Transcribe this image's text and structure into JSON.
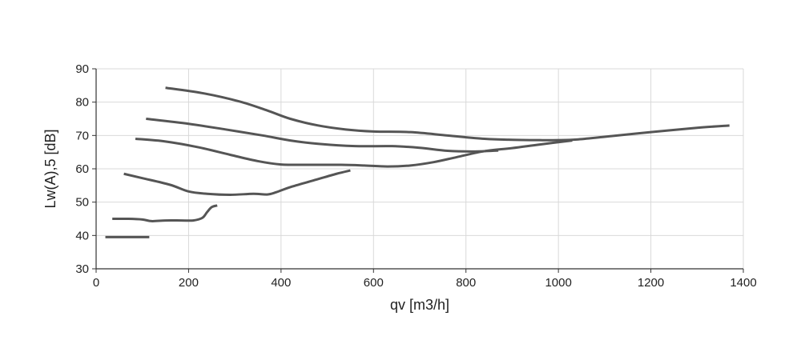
{
  "chart_data": {
    "type": "line",
    "xlabel": "qv [m3/h]",
    "ylabel": "Lw(A),5 [dB]",
    "xlim": [
      0,
      1400
    ],
    "ylim": [
      30,
      90
    ],
    "xticks": [
      0,
      200,
      400,
      600,
      800,
      1000,
      1200,
      1400
    ],
    "yticks": [
      30,
      40,
      50,
      60,
      70,
      80,
      90
    ],
    "grid": true,
    "legend": "none",
    "colors": {
      "line": "#555555",
      "grid": "#d9d9d9",
      "axis": "#333333"
    },
    "series": [
      {
        "x": [
          20,
          40,
          80,
          115
        ],
        "y": [
          39.5,
          39.5,
          39.5,
          39.5
        ]
      },
      {
        "x": [
          35,
          70,
          100,
          120,
          150,
          185,
          210,
          230,
          240,
          250,
          262
        ],
        "y": [
          45,
          45,
          44.8,
          44.3,
          44.5,
          44.5,
          44.5,
          45.3,
          47,
          48.5,
          49
        ]
      },
      {
        "x": [
          60,
          100,
          160,
          200,
          240,
          290,
          340,
          370,
          390,
          420,
          470,
          520,
          550
        ],
        "y": [
          58.5,
          57.2,
          55.2,
          53.2,
          52.5,
          52.2,
          52.5,
          52.3,
          53,
          54.5,
          56.5,
          58.5,
          59.5
        ]
      },
      {
        "x": [
          85,
          150,
          220,
          290,
          350,
          400,
          470,
          530,
          580,
          630,
          680,
          730,
          780,
          840,
          900,
          960,
          1030
        ],
        "y": [
          69,
          68.2,
          66.5,
          64.2,
          62.3,
          61.3,
          61.2,
          61.2,
          61,
          60.7,
          61,
          62,
          63.5,
          65.3,
          66.2,
          67.3,
          68.5
        ]
      },
      {
        "x": [
          108,
          200,
          280,
          360,
          420,
          480,
          560,
          640,
          700,
          760,
          820,
          870
        ],
        "y": [
          75,
          73.5,
          71.8,
          70,
          68.5,
          67.5,
          66.8,
          66.8,
          66.3,
          65.4,
          65.2,
          65.5
        ]
      },
      {
        "x": [
          150,
          230,
          310,
          370,
          420,
          480,
          540,
          600,
          680,
          760,
          840,
          900,
          960,
          1000,
          1040,
          1100,
          1200,
          1300,
          1370
        ],
        "y": [
          84.3,
          82.7,
          80.2,
          77.5,
          75,
          73,
          71.8,
          71.2,
          71,
          70,
          69,
          68.7,
          68.6,
          68.6,
          68.8,
          69.6,
          71,
          72.3,
          73
        ]
      }
    ]
  }
}
